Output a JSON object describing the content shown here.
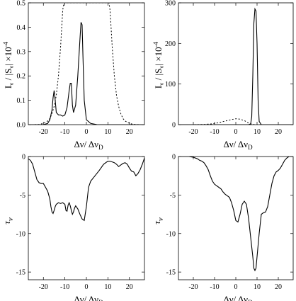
{
  "chart_data": [
    {
      "type": "line",
      "panel": "top-left",
      "xlabel": "Δν/ Δν",
      "xlabel_sub": "D",
      "ylabel": "I",
      "ylabel_sub": "ν",
      "ylabel_mid": " / |S",
      "ylabel_sub2": "ν",
      "ylabel_end": "| ×10",
      "ylabel_exp": "-4",
      "xlim": [
        -27,
        27
      ],
      "ylim": [
        0,
        0.5
      ],
      "xticks": [
        -20,
        -10,
        0,
        10,
        20
      ],
      "yticks": [
        0,
        0.1,
        0.2,
        0.3,
        0.4,
        0.5
      ],
      "xtick_labels": [
        "-20",
        "-10",
        "0",
        "10",
        "20"
      ],
      "ytick_labels": [
        "0.0",
        "0.1",
        "0.2",
        "0.3",
        "0.4",
        "0.5"
      ],
      "series": [
        {
          "style": "solid",
          "x": [
            -27,
            -20,
            -18,
            -17,
            -16,
            -15.5,
            -15,
            -14.6,
            -14,
            -13,
            -12,
            -11,
            -10,
            -9,
            -8,
            -7.5,
            -7,
            -6.5,
            -6,
            -5,
            -4,
            -3,
            -2.5,
            -2,
            -1.5,
            -1,
            0,
            2,
            5,
            27
          ],
          "y": [
            0,
            0,
            0.005,
            0.02,
            0.06,
            0.11,
            0.14,
            0.11,
            0.05,
            0.04,
            0.04,
            0.035,
            0.04,
            0.07,
            0.14,
            0.17,
            0.17,
            0.08,
            0.05,
            0.08,
            0.2,
            0.35,
            0.42,
            0.41,
            0.25,
            0.1,
            0.02,
            0.005,
            0,
            0
          ]
        },
        {
          "style": "dotted",
          "x": [
            -27,
            -25,
            -22,
            -20,
            -18,
            -17,
            -16,
            -15,
            -14,
            -13,
            -12,
            -11,
            -10.5,
            10.5,
            11,
            12,
            13,
            14,
            15,
            16,
            17,
            18,
            20,
            22,
            25,
            27
          ],
          "y": [
            0,
            0,
            0.001,
            0.005,
            0.015,
            0.025,
            0.045,
            0.075,
            0.12,
            0.2,
            0.32,
            0.47,
            0.5,
            0.5,
            0.47,
            0.32,
            0.2,
            0.12,
            0.075,
            0.045,
            0.025,
            0.015,
            0.005,
            0.001,
            0,
            0
          ]
        }
      ]
    },
    {
      "type": "line",
      "panel": "top-right",
      "xlabel": "Δν/ Δν",
      "xlabel_sub": "D",
      "ylabel": "I",
      "ylabel_sub": "ν",
      "ylabel_mid": " / |S",
      "ylabel_sub2": "ν",
      "ylabel_end": "| ×10",
      "ylabel_exp": "-4",
      "xlim": [
        -27,
        27
      ],
      "ylim": [
        0,
        300
      ],
      "xticks": [
        -20,
        -10,
        0,
        10,
        20
      ],
      "yticks": [
        0,
        100,
        200,
        300
      ],
      "xtick_labels": [
        "-20",
        "-10",
        "0",
        "10",
        "20"
      ],
      "ytick_labels": [
        "0",
        "100",
        "200",
        "300"
      ],
      "series": [
        {
          "style": "solid",
          "x": [
            -27,
            6,
            7,
            7.5,
            8,
            8.5,
            9,
            9.5,
            10,
            10.5,
            11,
            12,
            27
          ],
          "y": [
            0,
            0,
            2,
            20,
            120,
            250,
            285,
            280,
            200,
            60,
            8,
            0,
            0
          ]
        },
        {
          "style": "dotted",
          "x": [
            -27,
            -20,
            -15,
            -12,
            -10,
            -8,
            -6,
            -4,
            -2,
            0,
            2,
            4,
            5,
            6,
            7,
            8,
            9,
            27
          ],
          "y": [
            0,
            0,
            0.5,
            1.5,
            3,
            5,
            7.5,
            10,
            12.5,
            14.5,
            13.5,
            10,
            7,
            4,
            2,
            0.8,
            0,
            0
          ]
        }
      ]
    },
    {
      "type": "line",
      "panel": "bottom-left",
      "xlabel": "Δν/ Δν",
      "xlabel_sub": "D",
      "ylabel": "τ",
      "ylabel_sub": "ν",
      "xlim": [
        -27,
        27
      ],
      "ylim": [
        -16,
        0
      ],
      "xticks": [
        -20,
        -10,
        0,
        10,
        20
      ],
      "yticks": [
        0,
        -5,
        -10,
        -15
      ],
      "xtick_labels": [
        "-20",
        "-10",
        "0",
        "10",
        "20"
      ],
      "ytick_labels": [
        "0",
        "-5",
        "-10",
        "-15"
      ],
      "series": [
        {
          "style": "solid",
          "x": [
            -27,
            -26,
            -25,
            -24,
            -23,
            -22,
            -21,
            -20,
            -19,
            -18,
            -17,
            -16.5,
            -16,
            -15.5,
            -15,
            -14.5,
            -14,
            -13,
            -12,
            -11,
            -10,
            -9.5,
            -9,
            -8.5,
            -8,
            -7.5,
            -7,
            -6.5,
            -6,
            -5.5,
            -5,
            -4,
            -3,
            -2,
            -1,
            0,
            1,
            2,
            4,
            6,
            8,
            10,
            11,
            12,
            13,
            14,
            15,
            16,
            17,
            18,
            19,
            20,
            21,
            22,
            23,
            24,
            25,
            26,
            27
          ],
          "y": [
            -0.3,
            -0.5,
            -1.0,
            -2.0,
            -3.0,
            -3.4,
            -3.5,
            -3.5,
            -4.0,
            -4.5,
            -5.5,
            -6.5,
            -7.2,
            -7.4,
            -7.0,
            -6.5,
            -6.2,
            -6.0,
            -6.1,
            -6.0,
            -6.2,
            -7.0,
            -7.1,
            -6.3,
            -6.0,
            -6.4,
            -7.0,
            -7.5,
            -7.2,
            -6.7,
            -6.4,
            -6.8,
            -7.5,
            -8.1,
            -8.3,
            -6.5,
            -4.0,
            -3.2,
            -2.5,
            -1.8,
            -1.0,
            -0.6,
            -0.6,
            -0.7,
            -0.8,
            -1.0,
            -1.3,
            -1.1,
            -0.9,
            -0.8,
            -1.0,
            -1.5,
            -1.9,
            -2.0,
            -2.5,
            -2.2,
            -1.7,
            -1.0,
            -0.2
          ]
        }
      ]
    },
    {
      "type": "line",
      "panel": "bottom-right",
      "xlabel": "Δν/ Δν",
      "xlabel_sub": "D",
      "ylabel": "τ",
      "ylabel_sub": "ν",
      "xlim": [
        -27,
        27
      ],
      "ylim": [
        -16,
        0
      ],
      "xticks": [
        -20,
        -10,
        0,
        10,
        20
      ],
      "yticks": [
        0,
        -5,
        -10,
        -15
      ],
      "xtick_labels": [
        "-20",
        "-10",
        "0",
        "10",
        "20"
      ],
      "ytick_labels": [
        "0",
        "-5",
        "-10",
        "-15"
      ],
      "series": [
        {
          "style": "solid",
          "x": [
            -27,
            -22,
            -20,
            -18,
            -17,
            -16,
            -15,
            -14,
            -13,
            -12,
            -11,
            -10,
            -9,
            -8,
            -7,
            -6,
            -5,
            -4,
            -3,
            -2,
            -1,
            0,
            1,
            2,
            3,
            4,
            5,
            6,
            7,
            8,
            8.5,
            9,
            9.5,
            10,
            11,
            12,
            13,
            14,
            15,
            16,
            17,
            18,
            19,
            20,
            21,
            22,
            23,
            24,
            25,
            27
          ],
          "y": [
            0,
            0,
            -0.1,
            -0.3,
            -0.5,
            -0.6,
            -0.8,
            -1.2,
            -1.7,
            -2.5,
            -3.2,
            -3.6,
            -3.8,
            -4.0,
            -4.2,
            -4.6,
            -4.9,
            -5.1,
            -5.3,
            -6.0,
            -7.0,
            -8.3,
            -8.5,
            -7.5,
            -6.2,
            -5.8,
            -6.2,
            -8.0,
            -10.5,
            -13.0,
            -14.5,
            -14.8,
            -14.5,
            -13.0,
            -10.0,
            -7.5,
            -7.3,
            -7.2,
            -6.5,
            -5.0,
            -3.5,
            -2.5,
            -2.0,
            -1.8,
            -1.5,
            -1.0,
            -0.5,
            -0.2,
            0,
            0
          ]
        }
      ]
    }
  ]
}
